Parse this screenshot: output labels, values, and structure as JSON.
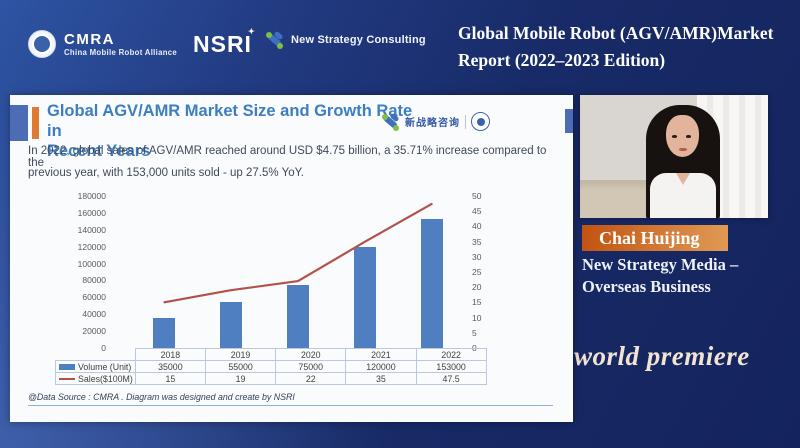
{
  "header": {
    "cmra": {
      "abbr": "CMRA",
      "full": "China Mobile Robot Alliance"
    },
    "nsri": {
      "name": "NSRI"
    },
    "consulting": {
      "name": "New Strategy Consulting"
    },
    "title_line1": "Global Mobile Robot (AGV/AMR)Market",
    "title_line2": "Report (2022–2023 Edition)"
  },
  "slide": {
    "title_line1": "Global AGV/AMR Market Size and Growth Rate in",
    "title_line2": "Recent Years",
    "logo_cn": "新战略咨询",
    "intro_line1": "In 2022, global sales of AGV/AMR reached around USD $4.75 billion, a 35.71% increase compared to the",
    "intro_line2": "previous year, with 153,000 units sold - up 27.5% YoY.",
    "footnote": "@Data Source : CMRA . Diagram was designed and create by NSRI"
  },
  "chart_data": {
    "type": "bar",
    "subtype": "combo bar+line, dual axis",
    "categories": [
      "2018",
      "2019",
      "2020",
      "2021",
      "2022"
    ],
    "series": [
      {
        "name": "Volume (Unit)",
        "type": "bar",
        "axis": "left",
        "color": "#4f7fc1",
        "values": [
          35000,
          55000,
          75000,
          120000,
          153000
        ]
      },
      {
        "name": "Sales($100M)",
        "type": "line",
        "axis": "right",
        "color": "#b2524a",
        "values": [
          15,
          19,
          22,
          35,
          47.5
        ]
      }
    ],
    "left_axis": {
      "min": 0,
      "max": 180000,
      "step": 20000
    },
    "right_axis": {
      "min": 0,
      "max": 50,
      "step": 5
    },
    "grid": false,
    "legend_position": "bottom data table"
  },
  "speaker": {
    "name": "Chai Huijing",
    "role_line1": "New Strategy Media –",
    "role_line2": "Overseas Business"
  },
  "badge": {
    "world_premiere": "world premiere"
  },
  "colors": {
    "background_top": "#2e54a3",
    "background_bottom": "#14235c",
    "slide_bg": "#fafbfd",
    "slide_title_blue": "#3c7ec1",
    "accent_blue": "#4c6cb5",
    "accent_orange": "#dd7a33",
    "bar_blue": "#4f7fc1",
    "line_red": "#b2524a",
    "banner_orange_left": "#c25312",
    "banner_orange_right": "#e09a55"
  }
}
